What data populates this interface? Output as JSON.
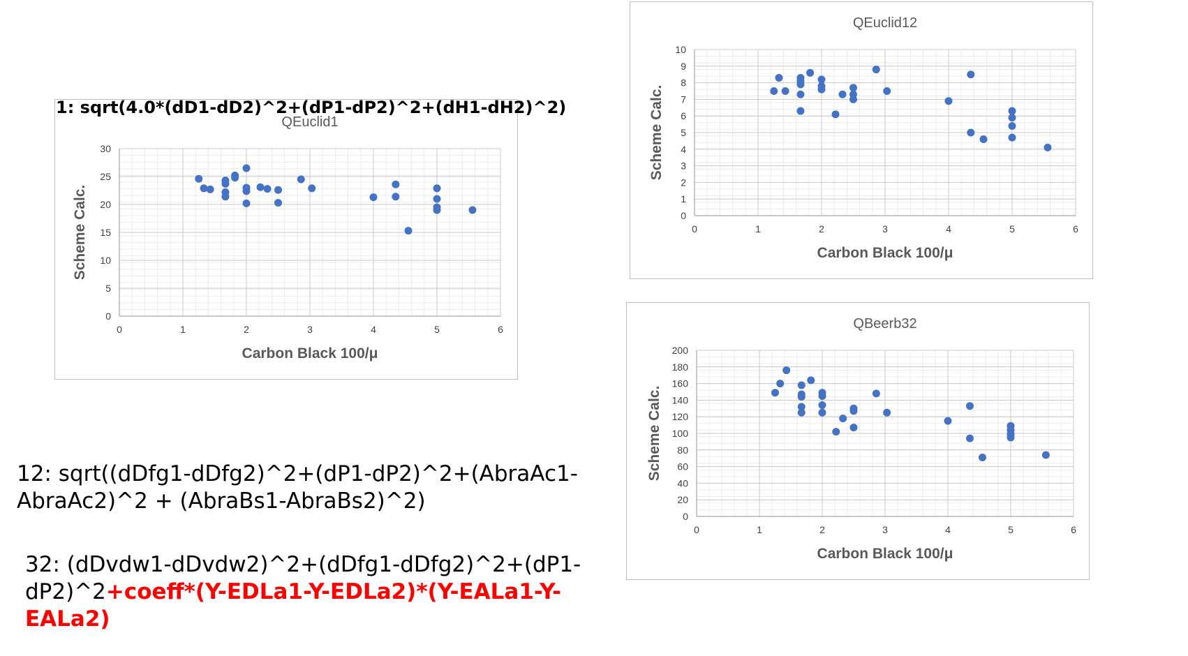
{
  "formulas": {
    "f1": "1: sqrt(4.0*(dD1-dD2)^2+(dP1-dP2)^2+(dH1-dH2)^2)",
    "f12": "12: sqrt((dDfg1-dDfg2)^2+(dP1-dP2)^2+(AbraAc1-AbraAc2)^2 + (AbraBs1-AbraBs2)^2)",
    "f32_plain": "32: (dDvdw1-dDvdw2)^2+(dDfg1-dDfg2)^2+(dP1-dP2)^2",
    "f32_highlight": "+coeff*(Y-EDLa1-Y-EDLa2)*(Y-EALa1-Y-EALa2)"
  },
  "colors": {
    "marker": "#4472c4",
    "highlight": "#ff0000"
  },
  "chart_data": [
    {
      "type": "scatter",
      "title": "QEuclid1",
      "xlabel": "Carbon Black 100/μ",
      "ylabel": "Scheme Calc.",
      "xlim": [
        0,
        6
      ],
      "ylim": [
        0,
        30
      ],
      "xticks": [
        0,
        1,
        2,
        3,
        4,
        5,
        6
      ],
      "yticks": [
        0,
        5,
        10,
        15,
        20,
        25,
        30
      ],
      "grid": true,
      "points": [
        [
          1.25,
          24.6
        ],
        [
          1.33,
          22.9
        ],
        [
          1.43,
          22.7
        ],
        [
          1.67,
          24.3
        ],
        [
          1.67,
          23.7
        ],
        [
          1.67,
          22.2
        ],
        [
          1.67,
          21.4
        ],
        [
          1.82,
          25.2
        ],
        [
          1.82,
          24.8
        ],
        [
          2.0,
          26.5
        ],
        [
          2.0,
          23.0
        ],
        [
          2.0,
          22.4
        ],
        [
          2.0,
          20.2
        ],
        [
          2.22,
          23.1
        ],
        [
          2.33,
          22.8
        ],
        [
          2.5,
          22.6
        ],
        [
          2.5,
          20.3
        ],
        [
          2.86,
          24.5
        ],
        [
          3.03,
          22.9
        ],
        [
          4.0,
          21.3
        ],
        [
          4.35,
          23.6
        ],
        [
          4.35,
          21.4
        ],
        [
          4.55,
          15.3
        ],
        [
          5.0,
          22.9
        ],
        [
          5.0,
          21.0
        ],
        [
          5.0,
          19.5
        ],
        [
          5.0,
          19.0
        ],
        [
          5.56,
          19.0
        ]
      ]
    },
    {
      "type": "scatter",
      "title": "QEuclid12",
      "xlabel": "Carbon Black 100/μ",
      "ylabel": "Scheme Calc.",
      "xlim": [
        0,
        6
      ],
      "ylim": [
        0,
        10
      ],
      "xticks": [
        0,
        1,
        2,
        3,
        4,
        5,
        6
      ],
      "yticks": [
        0,
        1,
        2,
        3,
        4,
        5,
        6,
        7,
        8,
        9,
        10
      ],
      "grid": true,
      "points": [
        [
          1.25,
          7.5
        ],
        [
          1.33,
          8.3
        ],
        [
          1.43,
          7.5
        ],
        [
          1.67,
          8.3
        ],
        [
          1.67,
          8.1
        ],
        [
          1.67,
          7.9
        ],
        [
          1.67,
          7.3
        ],
        [
          1.67,
          6.3
        ],
        [
          1.82,
          8.6
        ],
        [
          2.0,
          8.2
        ],
        [
          2.0,
          7.8
        ],
        [
          2.0,
          7.6
        ],
        [
          2.22,
          6.1
        ],
        [
          2.33,
          7.3
        ],
        [
          2.5,
          7.7
        ],
        [
          2.5,
          7.3
        ],
        [
          2.5,
          7.0
        ],
        [
          2.86,
          8.8
        ],
        [
          3.03,
          7.5
        ],
        [
          4.0,
          6.9
        ],
        [
          4.35,
          8.5
        ],
        [
          4.35,
          5.0
        ],
        [
          4.55,
          4.6
        ],
        [
          5.0,
          6.3
        ],
        [
          5.0,
          5.9
        ],
        [
          5.0,
          5.4
        ],
        [
          5.0,
          4.7
        ],
        [
          5.56,
          4.1
        ]
      ]
    },
    {
      "type": "scatter",
      "title": "QBeerb32",
      "xlabel": "Carbon Black 100/μ",
      "ylabel": "Scheme Calc.",
      "xlim": [
        0,
        6
      ],
      "ylim": [
        0,
        200
      ],
      "xticks": [
        0,
        1,
        2,
        3,
        4,
        5,
        6
      ],
      "yticks": [
        0,
        20,
        40,
        60,
        80,
        100,
        120,
        140,
        160,
        180,
        200
      ],
      "grid": true,
      "points": [
        [
          1.25,
          149
        ],
        [
          1.33,
          160
        ],
        [
          1.43,
          176
        ],
        [
          1.67,
          158
        ],
        [
          1.67,
          147
        ],
        [
          1.67,
          144
        ],
        [
          1.67,
          132
        ],
        [
          1.67,
          125
        ],
        [
          1.82,
          164
        ],
        [
          2.0,
          149
        ],
        [
          2.0,
          145
        ],
        [
          2.0,
          134
        ],
        [
          2.0,
          125
        ],
        [
          2.22,
          102
        ],
        [
          2.33,
          118
        ],
        [
          2.5,
          130
        ],
        [
          2.5,
          127
        ],
        [
          2.5,
          107
        ],
        [
          2.86,
          148
        ],
        [
          3.03,
          125
        ],
        [
          4.0,
          115
        ],
        [
          4.35,
          133
        ],
        [
          4.35,
          94
        ],
        [
          4.55,
          71
        ],
        [
          5.0,
          109
        ],
        [
          5.0,
          104
        ],
        [
          5.0,
          99
        ],
        [
          5.0,
          95
        ],
        [
          5.56,
          74
        ]
      ]
    }
  ]
}
